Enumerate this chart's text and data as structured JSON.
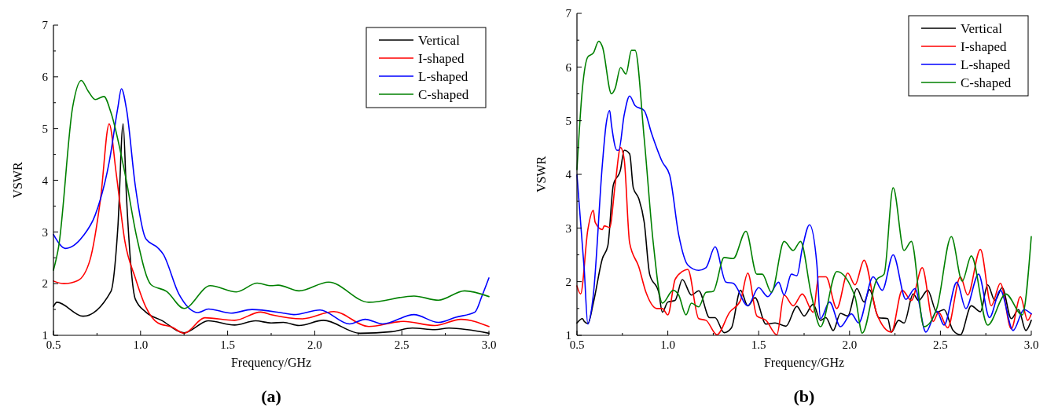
{
  "chart_data": [
    {
      "type": "line",
      "xlabel": "Frequency/GHz",
      "ylabel": "VSWR",
      "annotations": [
        "(a)"
      ],
      "xlim": [
        0.5,
        3.0
      ],
      "ylim": [
        1,
        7
      ],
      "xticks": [
        {
          "value": 0.5,
          "label": "0.5"
        },
        {
          "value": 0.75,
          "label": null
        },
        {
          "value": 1.0,
          "label": "1.0"
        },
        {
          "value": 1.25,
          "label": null
        },
        {
          "value": 1.5,
          "label": "1.5"
        },
        {
          "value": 1.75,
          "label": null
        },
        {
          "value": 2.0,
          "label": "2.0"
        },
        {
          "value": 2.25,
          "label": null
        },
        {
          "value": 2.5,
          "label": "2.5"
        },
        {
          "value": 2.75,
          "label": null
        },
        {
          "value": 3.0,
          "label": "3.0"
        }
      ],
      "yticks": [
        1,
        {
          "value": 1.5,
          "label": null
        },
        2,
        {
          "value": 2.5,
          "label": null
        },
        3,
        {
          "value": 3.5,
          "label": null
        },
        4,
        {
          "value": 4.5,
          "label": null
        },
        5,
        {
          "value": 5.5,
          "label": null
        },
        6,
        {
          "value": 6.5,
          "label": null
        },
        7
      ],
      "grid": false,
      "legend": "top right",
      "line_style": "solid",
      "marker": "none",
      "series": [
        {
          "name": "Vertical",
          "color": "#000000",
          "x": [
            0.5,
            0.52,
            0.67,
            0.83,
            0.87,
            0.9,
            0.92,
            0.97,
            1.03,
            1.12,
            1.25,
            1.39,
            1.54,
            1.66,
            1.75,
            1.82,
            1.91,
            2.05,
            2.26,
            2.44,
            2.56,
            2.69,
            2.77,
            3.0
          ],
          "values": [
            1.56,
            1.64,
            1.37,
            1.85,
            3.1,
            5.09,
            3.63,
            1.7,
            1.45,
            1.29,
            1.05,
            1.28,
            1.2,
            1.28,
            1.24,
            1.25,
            1.19,
            1.29,
            1.04,
            1.07,
            1.14,
            1.11,
            1.14,
            1.04
          ]
        },
        {
          "name": "I-shaped",
          "color": "#ff0000",
          "x": [
            0.5,
            0.56,
            0.64,
            0.71,
            0.77,
            0.82,
            0.86,
            0.91,
            0.97,
            1.03,
            1.1,
            1.18,
            1.25,
            1.37,
            1.54,
            1.69,
            1.75,
            1.93,
            2.11,
            2.31,
            2.51,
            2.69,
            2.84,
            3.0
          ],
          "values": [
            2.05,
            2.0,
            2.06,
            2.46,
            3.63,
            5.09,
            4.14,
            2.82,
            2.11,
            1.55,
            1.24,
            1.16,
            1.04,
            1.34,
            1.29,
            1.45,
            1.4,
            1.32,
            1.46,
            1.17,
            1.27,
            1.19,
            1.31,
            1.17
          ]
        },
        {
          "name": "L-shaped",
          "color": "#0000ff",
          "x": [
            0.5,
            0.57,
            0.67,
            0.74,
            0.82,
            0.87,
            0.89,
            0.92,
            0.97,
            1.03,
            1.1,
            1.13,
            1.22,
            1.33,
            1.39,
            1.52,
            1.64,
            1.82,
            1.88,
            2.03,
            2.2,
            2.29,
            2.39,
            2.57,
            2.71,
            2.81,
            2.92,
            2.96,
            3.0
          ],
          "values": [
            2.95,
            2.68,
            2.92,
            3.33,
            4.35,
            5.41,
            5.77,
            5.36,
            3.89,
            2.87,
            2.69,
            2.57,
            1.8,
            1.44,
            1.51,
            1.43,
            1.5,
            1.43,
            1.4,
            1.49,
            1.22,
            1.31,
            1.22,
            1.4,
            1.25,
            1.35,
            1.45,
            1.76,
            2.11
          ]
        },
        {
          "name": "C-shaped",
          "color": "#008000",
          "x": [
            0.5,
            0.53,
            0.61,
            0.66,
            0.7,
            0.74,
            0.79,
            0.83,
            0.91,
            0.98,
            1.06,
            1.15,
            1.25,
            1.4,
            1.55,
            1.67,
            1.75,
            1.79,
            1.91,
            2.08,
            2.31,
            2.57,
            2.71,
            2.86,
            3.0
          ],
          "values": [
            2.26,
            2.72,
            5.41,
            5.93,
            5.72,
            5.56,
            5.62,
            5.31,
            4.14,
            2.87,
            1.98,
            1.85,
            1.52,
            1.96,
            1.84,
            2.01,
            1.96,
            1.97,
            1.86,
            2.03,
            1.64,
            1.76,
            1.68,
            1.86,
            1.75
          ]
        }
      ]
    },
    {
      "type": "line",
      "xlabel": "Frequency/GHz",
      "ylabel": "VSWR",
      "annotations": [
        "(b)"
      ],
      "xlim": [
        0.5,
        3.0
      ],
      "ylim": [
        1,
        7
      ],
      "xticks": [
        {
          "value": 0.5,
          "label": "0.5"
        },
        {
          "value": 0.75,
          "label": null
        },
        {
          "value": 1.0,
          "label": "1.0"
        },
        {
          "value": 1.25,
          "label": null
        },
        {
          "value": 1.5,
          "label": "1.5"
        },
        {
          "value": 1.75,
          "label": null
        },
        {
          "value": 2.0,
          "label": "2.0"
        },
        {
          "value": 2.25,
          "label": null
        },
        {
          "value": 2.5,
          "label": "2.5"
        },
        {
          "value": 2.75,
          "label": null
        },
        {
          "value": 3.0,
          "label": "3.0"
        }
      ],
      "yticks": [
        1,
        {
          "value": 1.5,
          "label": null
        },
        2,
        {
          "value": 2.5,
          "label": null
        },
        3,
        {
          "value": 3.5,
          "label": null
        },
        4,
        {
          "value": 4.5,
          "label": null
        },
        5,
        {
          "value": 5.5,
          "label": null
        },
        6,
        {
          "value": 6.5,
          "label": null
        },
        7
      ],
      "grid": false,
      "legend": "top right",
      "line_style": "solid",
      "marker": "none",
      "series": [
        {
          "name": "Vertical",
          "color": "#000000",
          "x": [
            0.5,
            0.53,
            0.54,
            0.56,
            0.59,
            0.64,
            0.67,
            0.7,
            0.74,
            0.76,
            0.79,
            0.81,
            0.84,
            0.87,
            0.9,
            0.95,
            0.97,
            1.0,
            1.04,
            1.08,
            1.13,
            1.17,
            1.23,
            1.26,
            1.31,
            1.35,
            1.4,
            1.44,
            1.48,
            1.54,
            1.59,
            1.65,
            1.71,
            1.75,
            1.8,
            1.84,
            1.87,
            1.91,
            1.95,
            1.99,
            2.04,
            2.08,
            2.11,
            2.16,
            2.21,
            2.23,
            2.27,
            2.3,
            2.35,
            2.38,
            2.43,
            2.48,
            2.52,
            2.57,
            2.61,
            2.67,
            2.72,
            2.76,
            2.8,
            2.84,
            2.89,
            2.93,
            2.97,
            3.0
          ],
          "values": [
            1.23,
            1.31,
            1.26,
            1.22,
            1.6,
            2.43,
            2.67,
            3.8,
            4.09,
            4.45,
            4.38,
            3.75,
            3.55,
            3.11,
            2.14,
            1.8,
            1.43,
            1.62,
            1.65,
            2.04,
            1.75,
            1.83,
            1.33,
            1.33,
            1.05,
            1.14,
            1.84,
            1.55,
            1.7,
            1.21,
            1.23,
            1.17,
            1.54,
            1.36,
            1.58,
            1.28,
            1.33,
            1.09,
            1.41,
            1.36,
            1.87,
            1.62,
            1.85,
            1.33,
            1.31,
            1.06,
            1.28,
            1.23,
            1.77,
            1.65,
            1.84,
            1.43,
            1.48,
            1.09,
            1.01,
            1.55,
            1.44,
            1.94,
            1.65,
            1.89,
            1.31,
            1.48,
            1.09,
            1.28
          ]
        },
        {
          "name": "I-shaped",
          "color": "#ff0000",
          "x": [
            0.5,
            0.52,
            0.56,
            0.59,
            0.6,
            0.64,
            0.65,
            0.68,
            0.71,
            0.74,
            0.76,
            0.79,
            0.84,
            0.88,
            0.94,
            0.97,
            1.0,
            1.04,
            1.08,
            1.11,
            1.17,
            1.21,
            1.27,
            1.34,
            1.4,
            1.44,
            1.49,
            1.54,
            1.6,
            1.64,
            1.69,
            1.74,
            1.8,
            1.83,
            1.87,
            1.93,
            1.99,
            2.03,
            2.08,
            2.15,
            2.23,
            2.29,
            2.34,
            2.4,
            2.46,
            2.49,
            2.54,
            2.61,
            2.65,
            2.72,
            2.78,
            2.83,
            2.89,
            2.94,
            2.98,
            3.0
          ],
          "values": [
            1.92,
            1.77,
            2.97,
            3.33,
            3.11,
            2.97,
            3.04,
            3.01,
            3.8,
            4.5,
            4.28,
            2.72,
            2.28,
            1.8,
            1.5,
            1.5,
            1.38,
            2.04,
            2.19,
            2.23,
            1.31,
            1.28,
            1.01,
            1.43,
            1.65,
            2.16,
            1.36,
            1.28,
            1.01,
            1.75,
            1.55,
            1.77,
            1.43,
            2.09,
            2.09,
            1.5,
            2.16,
            1.94,
            2.4,
            1.4,
            1.06,
            1.84,
            1.65,
            2.26,
            1.26,
            1.43,
            1.14,
            2.09,
            1.75,
            2.6,
            1.55,
            1.97,
            1.12,
            1.72,
            1.28,
            1.4
          ]
        },
        {
          "name": "L-shaped",
          "color": "#0000ff",
          "x": [
            0.5,
            0.54,
            0.56,
            0.59,
            0.64,
            0.66,
            0.68,
            0.69,
            0.72,
            0.73,
            0.76,
            0.79,
            0.82,
            0.87,
            0.91,
            0.97,
            1.01,
            1.06,
            1.11,
            1.17,
            1.21,
            1.26,
            1.32,
            1.36,
            1.44,
            1.5,
            1.55,
            1.61,
            1.64,
            1.68,
            1.71,
            1.74,
            1.78,
            1.82,
            1.84,
            1.89,
            1.95,
            2.01,
            2.05,
            2.13,
            2.18,
            2.24,
            2.31,
            2.36,
            2.42,
            2.48,
            2.52,
            2.59,
            2.64,
            2.71,
            2.77,
            2.83,
            2.9,
            2.96,
            3.0
          ],
          "values": [
            3.99,
            2.23,
            1.21,
            1.75,
            4.19,
            4.92,
            5.19,
            4.92,
            4.45,
            4.45,
            5.11,
            5.46,
            5.28,
            5.19,
            4.77,
            4.23,
            3.99,
            2.87,
            2.31,
            2.21,
            2.26,
            2.65,
            1.99,
            1.97,
            1.55,
            1.89,
            1.72,
            1.99,
            1.75,
            2.14,
            2.11,
            2.62,
            3.06,
            2.33,
            1.31,
            1.62,
            1.16,
            1.4,
            1.23,
            2.09,
            1.84,
            2.5,
            1.67,
            1.87,
            1.06,
            1.45,
            1.19,
            1.99,
            1.5,
            2.14,
            1.33,
            1.84,
            1.09,
            1.48,
            1.4
          ]
        },
        {
          "name": "C-shaped",
          "color": "#008000",
          "x": [
            0.5,
            0.53,
            0.56,
            0.59,
            0.62,
            0.64,
            0.69,
            0.71,
            0.74,
            0.77,
            0.8,
            0.82,
            0.87,
            0.92,
            0.97,
            1.03,
            1.06,
            1.1,
            1.13,
            1.17,
            1.21,
            1.25,
            1.31,
            1.36,
            1.43,
            1.49,
            1.52,
            1.57,
            1.64,
            1.69,
            1.73,
            1.79,
            1.84,
            1.93,
            2.03,
            2.07,
            2.15,
            2.19,
            2.24,
            2.3,
            2.34,
            2.41,
            2.48,
            2.56,
            2.62,
            2.67,
            2.76,
            2.86,
            2.95,
            3.0
          ],
          "values": [
            4.09,
            5.6,
            6.19,
            6.26,
            6.48,
            6.38,
            5.5,
            5.6,
            5.99,
            5.87,
            6.31,
            6.31,
            4.67,
            2.72,
            1.6,
            1.84,
            1.75,
            1.38,
            1.6,
            1.53,
            1.8,
            1.82,
            2.45,
            2.43,
            2.94,
            2.14,
            2.14,
            1.8,
            2.75,
            2.58,
            2.75,
            1.75,
            1.16,
            2.19,
            1.72,
            1.04,
            2.04,
            2.14,
            3.75,
            2.58,
            2.75,
            1.16,
            1.5,
            2.84,
            2.01,
            2.48,
            1.19,
            1.77,
            1.38,
            2.84
          ]
        }
      ]
    }
  ]
}
